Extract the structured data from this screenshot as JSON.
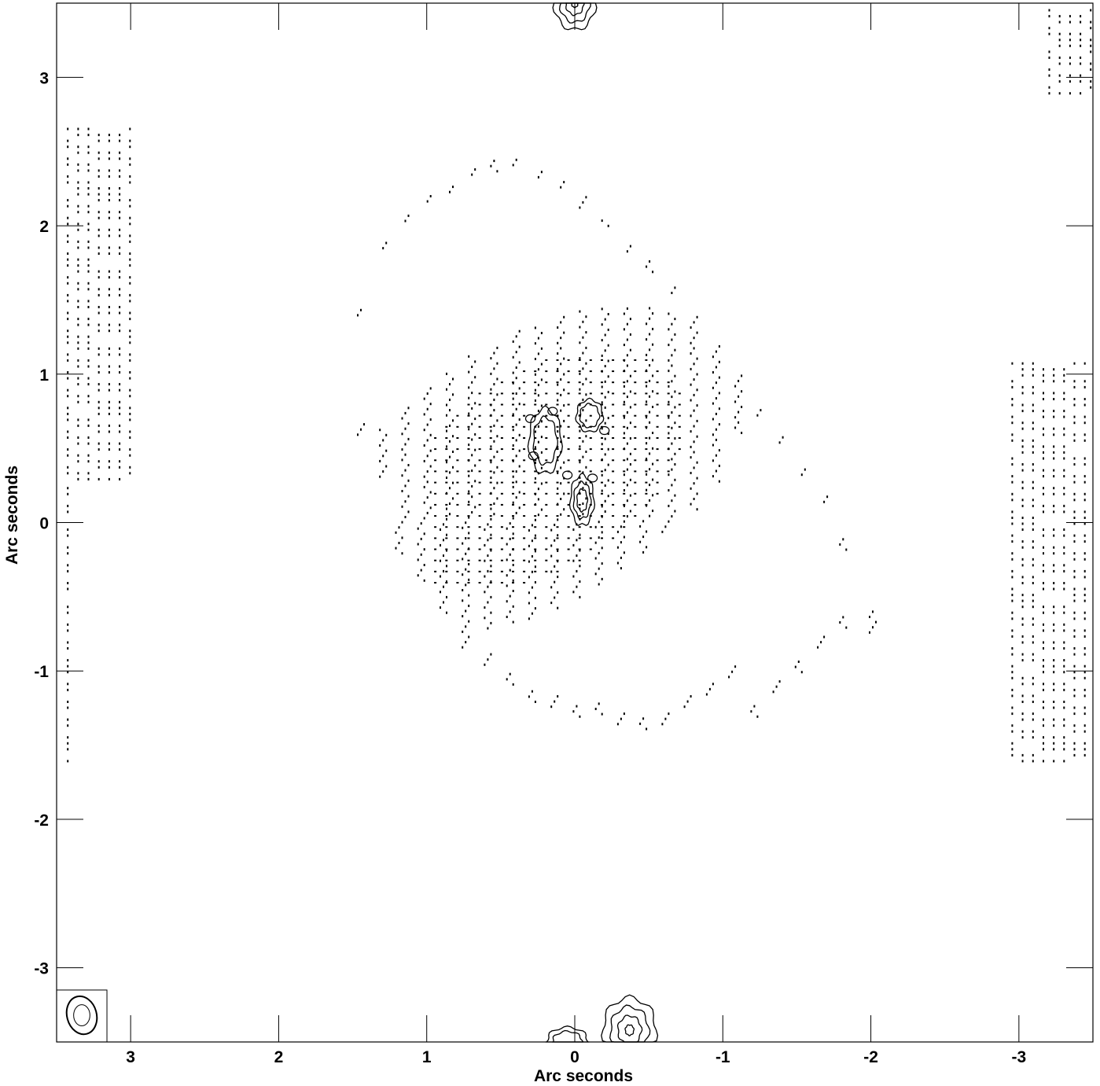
{
  "chart_data": {
    "type": "contour",
    "title": "",
    "xlabel": "Arc seconds",
    "ylabel": "Arc seconds",
    "xlim": [
      3.5,
      -3.5
    ],
    "ylim": [
      -3.5,
      3.5
    ],
    "x_reversed": true,
    "xticks": [
      3,
      2,
      1,
      0,
      -1,
      -2,
      -3
    ],
    "yticks": [
      3,
      2,
      1,
      0,
      -1,
      -2,
      -3
    ],
    "xtick_labels": [
      "3",
      "2",
      "1",
      "0",
      "-1",
      "-2",
      "-3"
    ],
    "ytick_labels": [
      "3",
      "2",
      "1",
      "0",
      "-1",
      "-2",
      "-3"
    ],
    "line_color": "#000000",
    "dotted_pattern": {
      "center": [
        0.25,
        0.35
      ],
      "semi_axes": [
        1.55,
        0.9
      ],
      "angle_deg": -32,
      "columns": [
        {
          "x": 1.45,
          "y1": 0.6,
          "y2": 1.45
        },
        {
          "x": 1.3,
          "y1": 0.3,
          "y2": 1.9
        },
        {
          "x": 1.15,
          "y1": -0.2,
          "y2": 2.1
        },
        {
          "x": 1.0,
          "y1": -0.4,
          "y2": 2.2
        },
        {
          "x": 0.85,
          "y1": -0.6,
          "y2": 2.3
        },
        {
          "x": 0.7,
          "y1": -0.85,
          "y2": 2.4
        },
        {
          "x": 0.55,
          "y1": -0.95,
          "y2": 2.45
        },
        {
          "x": 0.4,
          "y1": -1.1,
          "y2": 2.45
        },
        {
          "x": 0.25,
          "y1": -1.2,
          "y2": 2.4
        },
        {
          "x": 0.1,
          "y1": -1.25,
          "y2": 2.3
        },
        {
          "x": -0.05,
          "y1": -1.3,
          "y2": 2.2
        },
        {
          "x": -0.2,
          "y1": -1.3,
          "y2": 2.05
        },
        {
          "x": -0.35,
          "y1": -1.35,
          "y2": 1.9
        },
        {
          "x": -0.5,
          "y1": -1.4,
          "y2": 1.75
        },
        {
          "x": -0.65,
          "y1": -1.35,
          "y2": 1.6
        },
        {
          "x": -0.8,
          "y1": -1.25,
          "y2": 1.4
        },
        {
          "x": -0.95,
          "y1": -1.15,
          "y2": 1.2
        },
        {
          "x": -1.1,
          "y1": -1.05,
          "y2": 1.0
        },
        {
          "x": -1.25,
          "y1": -1.3,
          "y2": 0.8
        },
        {
          "x": -1.4,
          "y1": -1.15,
          "y2": 0.6
        },
        {
          "x": -1.55,
          "y1": -1.0,
          "y2": 0.4
        },
        {
          "x": -1.7,
          "y1": -0.85,
          "y2": 0.2
        },
        {
          "x": -1.85,
          "y1": -0.7,
          "y2": -0.1
        },
        {
          "x": -2.05,
          "y1": -0.75,
          "y2": -0.6
        }
      ]
    },
    "contour_groups": [
      {
        "name": "upper-left blob",
        "cx": 0.2,
        "cy": 0.55,
        "rx": 0.11,
        "ry": 0.22,
        "levels": 2
      },
      {
        "name": "upper-right blob",
        "cx": -0.1,
        "cy": 0.72,
        "rx": 0.09,
        "ry": 0.11,
        "levels": 2
      },
      {
        "name": "lower blob",
        "cx": -0.05,
        "cy": 0.15,
        "rx": 0.08,
        "ry": 0.17,
        "levels": 3
      },
      {
        "name": "top edge source",
        "cx": 0.0,
        "cy": 3.5,
        "rx": 0.14,
        "ry": 0.18,
        "levels": 4
      },
      {
        "name": "bottom edge source",
        "cx": -0.37,
        "cy": -3.42,
        "rx": 0.18,
        "ry": 0.22,
        "levels": 4
      },
      {
        "name": "bottom edge left source",
        "cx": 0.05,
        "cy": -3.5,
        "rx": 0.14,
        "ry": 0.1,
        "levels": 2
      }
    ],
    "beam": {
      "cx": 3.33,
      "cy": -3.32,
      "rx": 0.1,
      "ry": 0.13,
      "box": [
        3.5,
        3.16,
        -3.5,
        -3.15
      ]
    },
    "edge_patterns": [
      {
        "x1": 3.5,
        "x2": 3.0,
        "y1": 0.3,
        "y2": 2.7
      },
      {
        "x1": -2.95,
        "x2": -3.5,
        "y1": -1.6,
        "y2": 1.1
      },
      {
        "x1": 3.5,
        "x2": 3.4,
        "y1": -1.6,
        "y2": 0.3
      },
      {
        "x1": -3.2,
        "x2": -3.5,
        "y1": 2.9,
        "y2": 3.5
      }
    ]
  }
}
